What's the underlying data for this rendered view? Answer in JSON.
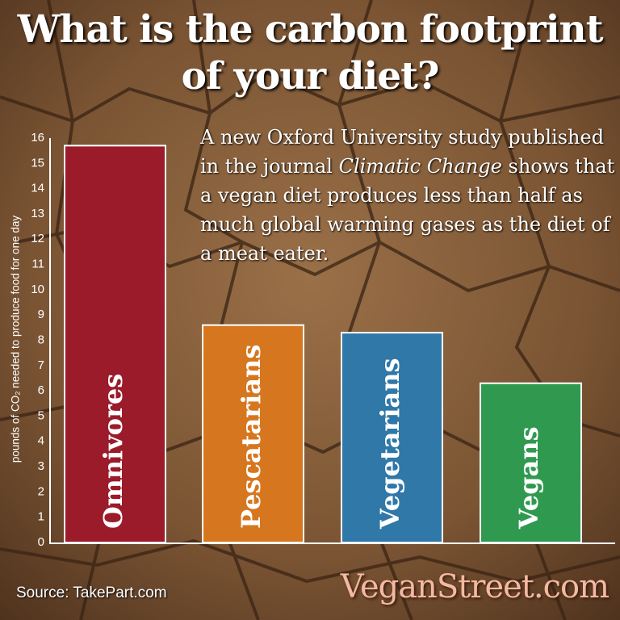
{
  "chart_data": {
    "type": "bar",
    "title": "What is the carbon footprint of your diet?",
    "y_label": "pounds of CO₂ needed to produce food for one day",
    "annotation": [
      "A new Oxford University study published in the journal ",
      "Climatic Change",
      " shows that a vegan diet produces less than half as much global warming gases as the diet of a meat eater."
    ],
    "categories": [
      "Omnivores",
      "Pescatarians",
      "Vegetarians",
      "Vegans"
    ],
    "values": [
      15.7,
      8.6,
      8.3,
      6.3
    ],
    "colors": [
      "#9b1b2b",
      "#d6771f",
      "#2f78a8",
      "#2f9a4f"
    ],
    "ylim": [
      0,
      16
    ],
    "yticks": [
      0,
      1,
      2,
      3,
      4,
      5,
      6,
      7,
      8,
      9,
      10,
      11,
      12,
      13,
      14,
      15,
      16
    ],
    "source": "Source: TakePart.com",
    "brand": "VeganStreet.com"
  }
}
